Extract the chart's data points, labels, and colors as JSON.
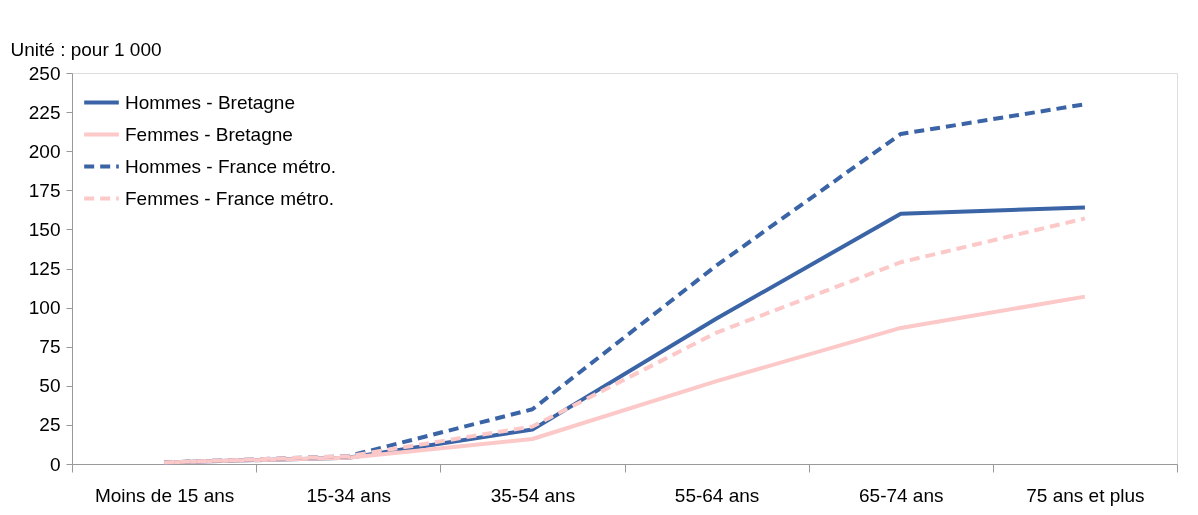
{
  "chart_data": {
    "type": "line",
    "ylabel": "Unité : pour 1 000",
    "categories": [
      "Moins de 15 ans",
      "15-34 ans",
      "35-54 ans",
      "55-64 ans",
      "65-74 ans",
      "75 ans et plus"
    ],
    "series": [
      {
        "name": "Hommes - Bretagne",
        "color": "#3a64a6",
        "line_style": "solid",
        "values": [
          1,
          4,
          22,
          93,
          160,
          164
        ]
      },
      {
        "name": "Femmes - Bretagne",
        "color": "#fcc8c8",
        "line_style": "solid",
        "values": [
          1,
          4,
          16,
          53,
          87,
          107
        ]
      },
      {
        "name": "Hommes - France métro.",
        "color": "#3a64a6",
        "line_style": "dashed",
        "values": [
          1,
          5,
          35,
          127,
          211,
          230
        ]
      },
      {
        "name": "Femmes - France métro.",
        "color": "#fcc8c8",
        "line_style": "dashed",
        "values": [
          1,
          5,
          24,
          84,
          129,
          157
        ]
      }
    ],
    "ylim": [
      0,
      250
    ],
    "yticks": [
      0,
      25,
      50,
      75,
      100,
      125,
      150,
      175,
      200,
      225,
      250
    ],
    "grid": false,
    "legend": "top left",
    "marker": "none"
  }
}
